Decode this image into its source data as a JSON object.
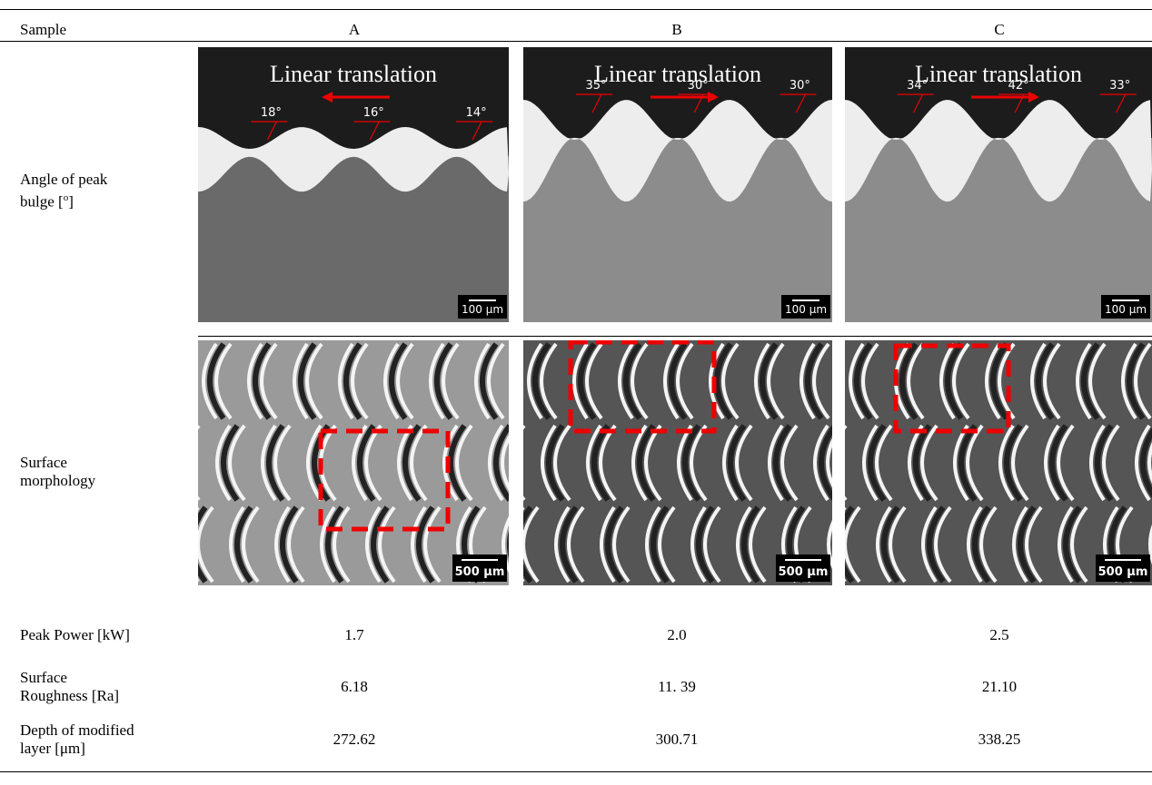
{
  "table": {
    "columns": [
      "Sample",
      "A",
      "B",
      "C"
    ],
    "angle_row": {
      "label": [
        "Angle of peak",
        "bulge [",
        "o",
        "]"
      ],
      "cells": [
        {
          "caption": "Linear translation",
          "angles": [
            "18°",
            "16°",
            "14°"
          ],
          "scale": "100 µm"
        },
        {
          "caption": "Linear translation",
          "angles": [
            "35°",
            "30°",
            "30°"
          ],
          "scale": "100 µm"
        },
        {
          "caption": "Linear translation",
          "angles": [
            "34°",
            "42°",
            "33°"
          ],
          "scale": "100 µm"
        }
      ]
    },
    "morphology_row": {
      "label": [
        "Surface",
        "morphology"
      ],
      "cells": [
        {
          "scale": "500 µm"
        },
        {
          "scale": "500 µm"
        },
        {
          "scale": "500 µm"
        }
      ]
    },
    "rows": [
      [
        [
          "Peak Power [kW]"
        ],
        "1.7",
        "2.0",
        "2.5"
      ],
      [
        [
          "Surface",
          "Roughness [Ra]"
        ],
        "6.18",
        "11. 39",
        "21.10"
      ],
      [
        [
          "Depth of modified",
          "layer [μm]"
        ],
        "272.62",
        "300.71",
        "338.25"
      ]
    ]
  }
}
